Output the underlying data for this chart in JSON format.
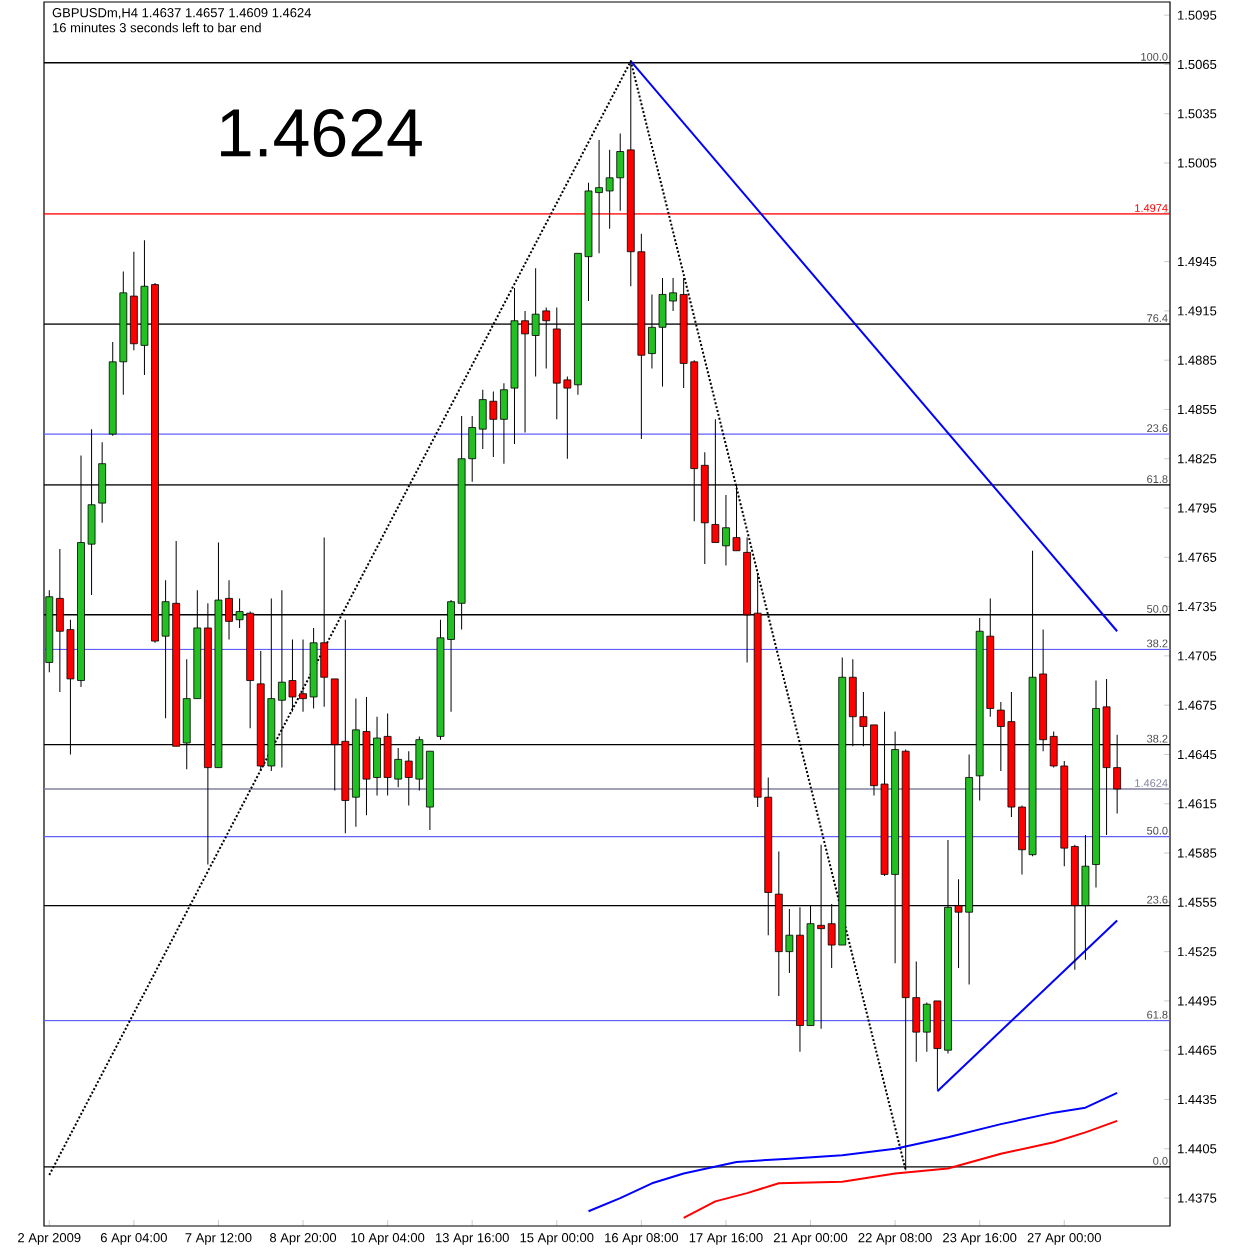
{
  "chart_data": {
    "type": "candlestick",
    "title": "GBPUSDm,H4 1.4637 1.4657 1.4609 1.4624",
    "subtitle": "16 minutes 3 seconds left to bar end",
    "annotations": [
      "1.4624",
      {
        "text": "100.0",
        "y": 1.5066
      },
      {
        "text": "76.4",
        "y": 1.4907
      },
      {
        "text": "23.6",
        "y": 1.484
      },
      {
        "text": "61.8",
        "y": 1.4809
      },
      {
        "text": "50.0",
        "y": 1.473
      },
      {
        "text": "38.2",
        "y": 1.4709
      },
      {
        "text": "38.2",
        "y": 1.4651
      },
      {
        "text": "50.0",
        "y": 1.4595
      },
      {
        "text": "23.6",
        "y": 1.4553
      },
      {
        "text": "61.8",
        "y": 1.4483
      },
      {
        "text": "0.0",
        "y": 1.4394
      }
    ],
    "categories": [
      "2 Apr 2009",
      null,
      null,
      null,
      null,
      null,
      null,
      null,
      "6 Apr 04:00",
      null,
      null,
      null,
      null,
      null,
      null,
      null,
      "7 Apr 12:00",
      null,
      null,
      null,
      null,
      null,
      null,
      null,
      "8 Apr 20:00",
      null,
      null,
      null,
      null,
      null,
      null,
      null,
      "10 Apr 04:00",
      null,
      null,
      null,
      null,
      null,
      null,
      null,
      "13 Apr 16:00",
      null,
      null,
      null,
      null,
      null,
      null,
      null,
      "15 Apr 00:00",
      null,
      null,
      null,
      null,
      null,
      null,
      null,
      "16 Apr 08:00",
      null,
      null,
      null,
      null,
      null,
      null,
      null,
      "17 Apr 16:00",
      null,
      null,
      null,
      null,
      null,
      null,
      null,
      "21 Apr 00:00",
      null,
      null,
      null,
      null,
      null,
      null,
      null,
      "22 Apr 08:00",
      null,
      null,
      null,
      null,
      null,
      null,
      null,
      "23 Apr 16:00",
      null,
      null,
      null,
      null,
      null,
      null,
      null,
      "27 Apr 00:00",
      null,
      null,
      null,
      null,
      null
    ],
    "ohlc": [
      [
        1.4701,
        1.4745,
        1.4695,
        1.4741
      ],
      [
        1.474,
        1.477,
        1.4683,
        1.472
      ],
      [
        1.4721,
        1.4727,
        1.4645,
        1.4691
      ],
      [
        1.469,
        1.4827,
        1.4686,
        1.4774
      ],
      [
        1.4773,
        1.4843,
        1.4742,
        1.4797
      ],
      [
        1.4798,
        1.4835,
        1.4786,
        1.4822
      ],
      [
        1.484,
        1.4896,
        1.4839,
        1.4884
      ],
      [
        1.4884,
        1.4939,
        1.4864,
        1.4926
      ],
      [
        1.4924,
        1.4951,
        1.4891,
        1.4895
      ],
      [
        1.4894,
        1.4958,
        1.4876,
        1.493
      ],
      [
        1.4931,
        1.4932,
        1.4713,
        1.4714
      ],
      [
        1.4717,
        1.4751,
        1.4667,
        1.4738
      ],
      [
        1.4737,
        1.4775,
        1.465,
        1.465
      ],
      [
        1.4652,
        1.4703,
        1.4636,
        1.4679
      ],
      [
        1.4679,
        1.4745,
        1.4679,
        1.4722
      ],
      [
        1.4722,
        1.4737,
        1.4578,
        1.4637
      ],
      [
        1.4637,
        1.4774,
        1.4637,
        1.4739
      ],
      [
        1.474,
        1.4751,
        1.4715,
        1.4726
      ],
      [
        1.4727,
        1.474,
        1.4722,
        1.4732
      ],
      [
        1.4731,
        1.4732,
        1.4661,
        1.469
      ],
      [
        1.4688,
        1.4708,
        1.4635,
        1.4638
      ],
      [
        1.4638,
        1.474,
        1.4635,
        1.4679
      ],
      [
        1.4678,
        1.4745,
        1.4637,
        1.4689
      ],
      [
        1.469,
        1.4715,
        1.4671,
        1.468
      ],
      [
        1.4682,
        1.4715,
        1.4671,
        1.4679
      ],
      [
        1.468,
        1.4722,
        1.4673,
        1.4713
      ],
      [
        1.4713,
        1.4777,
        1.4674,
        1.4692
      ],
      [
        1.4691,
        1.4691,
        1.4623,
        1.4651
      ],
      [
        1.4653,
        1.4727,
        1.4597,
        1.4617
      ],
      [
        1.4619,
        1.4679,
        1.4601,
        1.466
      ],
      [
        1.4659,
        1.468,
        1.4608,
        1.463
      ],
      [
        1.4631,
        1.4668,
        1.462,
        1.4655
      ],
      [
        1.4656,
        1.467,
        1.462,
        1.4631
      ],
      [
        1.463,
        1.4649,
        1.4625,
        1.4642
      ],
      [
        1.4641,
        1.4647,
        1.4614,
        1.4631
      ],
      [
        1.463,
        1.4656,
        1.4623,
        1.4654
      ],
      [
        1.4613,
        1.4647,
        1.4599,
        1.4647
      ],
      [
        1.4656,
        1.4727,
        1.4654,
        1.4716
      ],
      [
        1.4715,
        1.4739,
        1.4671,
        1.4738
      ],
      [
        1.4737,
        1.4851,
        1.4721,
        1.4825
      ],
      [
        1.4825,
        1.4851,
        1.4811,
        1.4844
      ],
      [
        1.4843,
        1.4867,
        1.4831,
        1.4861
      ],
      [
        1.486,
        1.4866,
        1.4826,
        1.4849
      ],
      [
        1.4849,
        1.4871,
        1.4822,
        1.4867
      ],
      [
        1.4868,
        1.4929,
        1.4834,
        1.4909
      ],
      [
        1.4909,
        1.4915,
        1.4841,
        1.4901
      ],
      [
        1.49,
        1.4941,
        1.4875,
        1.4913
      ],
      [
        1.4915,
        1.4917,
        1.488,
        1.4909
      ],
      [
        1.4904,
        1.4917,
        1.4849,
        1.4871
      ],
      [
        1.4873,
        1.4875,
        1.4825,
        1.4868
      ],
      [
        1.487,
        1.495,
        1.4864,
        1.495
      ],
      [
        1.4948,
        1.4993,
        1.4921,
        1.4988
      ],
      [
        1.4987,
        1.5019,
        1.495,
        1.499
      ],
      [
        1.4988,
        1.5013,
        1.4965,
        1.4996
      ],
      [
        1.4996,
        1.5023,
        1.4976,
        1.5012
      ],
      [
        1.5013,
        1.5067,
        1.493,
        1.4951
      ],
      [
        1.4951,
        1.4962,
        1.4837,
        1.4888
      ],
      [
        1.4889,
        1.4925,
        1.488,
        1.4905
      ],
      [
        1.4905,
        1.4935,
        1.4869,
        1.4925
      ],
      [
        1.4921,
        1.4935,
        1.4915,
        1.4926
      ],
      [
        1.4925,
        1.4935,
        1.4868,
        1.4883
      ],
      [
        1.4884,
        1.4885,
        1.4787,
        1.4819
      ],
      [
        1.4821,
        1.4829,
        1.4761,
        1.4786
      ],
      [
        1.4785,
        1.4849,
        1.4774,
        1.4774
      ],
      [
        1.4772,
        1.4803,
        1.476,
        1.4783
      ],
      [
        1.4777,
        1.4809,
        1.4769,
        1.4769
      ],
      [
        1.4768,
        1.4777,
        1.4701,
        1.473
      ],
      [
        1.4731,
        1.4755,
        1.4613,
        1.4619
      ],
      [
        1.4619,
        1.4631,
        1.4535,
        1.4561
      ],
      [
        1.456,
        1.4586,
        1.4498,
        1.4525
      ],
      [
        1.4525,
        1.4551,
        1.4512,
        1.4535
      ],
      [
        1.4535,
        1.4552,
        1.4464,
        1.448
      ],
      [
        1.448,
        1.4553,
        1.448,
        1.4542
      ],
      [
        1.4541,
        1.459,
        1.4478,
        1.4539
      ],
      [
        1.4542,
        1.4554,
        1.4515,
        1.4529
      ],
      [
        1.4529,
        1.4704,
        1.4529,
        1.4692
      ],
      [
        1.4692,
        1.4703,
        1.465,
        1.4668
      ],
      [
        1.4668,
        1.4683,
        1.465,
        1.4662
      ],
      [
        1.4663,
        1.4663,
        1.462,
        1.4626
      ],
      [
        1.4627,
        1.4671,
        1.4571,
        1.4572
      ],
      [
        1.4572,
        1.4659,
        1.4518,
        1.4648
      ],
      [
        1.4647,
        1.4648,
        1.4392,
        1.4497
      ],
      [
        1.4497,
        1.4519,
        1.4458,
        1.4476
      ],
      [
        1.4476,
        1.4494,
        1.4464,
        1.4493
      ],
      [
        1.4495,
        1.4495,
        1.4441,
        1.4466
      ],
      [
        1.4465,
        1.4593,
        1.4463,
        1.4552
      ],
      [
        1.4553,
        1.4569,
        1.4515,
        1.4549
      ],
      [
        1.4549,
        1.4645,
        1.4505,
        1.4631
      ],
      [
        1.4632,
        1.4728,
        1.4617,
        1.472
      ],
      [
        1.4717,
        1.474,
        1.4668,
        1.4673
      ],
      [
        1.4672,
        1.4677,
        1.4635,
        1.4662
      ],
      [
        1.4665,
        1.4683,
        1.4607,
        1.4613
      ],
      [
        1.4613,
        1.4614,
        1.4572,
        1.4587
      ],
      [
        1.4584,
        1.4769,
        1.4583,
        1.4692
      ],
      [
        1.4694,
        1.4721,
        1.4647,
        1.4654
      ],
      [
        1.4656,
        1.4659,
        1.4637,
        1.4638
      ],
      [
        1.4638,
        1.4641,
        1.4577,
        1.4588
      ],
      [
        1.4589,
        1.459,
        1.4514,
        1.4553
      ],
      [
        1.4553,
        1.4596,
        1.452,
        1.4577
      ],
      [
        1.4578,
        1.469,
        1.4564,
        1.4673
      ],
      [
        1.4674,
        1.4691,
        1.4596,
        1.4637
      ],
      [
        1.4637,
        1.4657,
        1.4609,
        1.4624
      ]
    ],
    "series": [
      {
        "type": "line",
        "color": "#000000",
        "line_style": "dotted",
        "values": [
          1.4389,
          null,
          null,
          null,
          null,
          null,
          null,
          null,
          null,
          null,
          null,
          null,
          null,
          null,
          null,
          null,
          null,
          null,
          null,
          null,
          null,
          null,
          null,
          null,
          null,
          null,
          null,
          null,
          null,
          null,
          null,
          null,
          null,
          null,
          null,
          null,
          null,
          null,
          null,
          null,
          null,
          null,
          null,
          null,
          null,
          null,
          null,
          null,
          null,
          null,
          null,
          null,
          null,
          null,
          null,
          1.5067,
          null,
          null,
          null,
          null,
          null,
          null,
          null,
          null,
          null,
          null,
          null,
          null,
          null,
          null,
          null,
          null,
          null,
          null,
          null,
          null,
          null,
          null,
          null,
          null,
          null,
          1.4392,
          null,
          null,
          null,
          null,
          null,
          null,
          null,
          null,
          null,
          null,
          null,
          null,
          null,
          null,
          null,
          null,
          null,
          null,
          null,
          null
        ]
      },
      {
        "type": "line",
        "color": "#0000ff",
        "line_style": "solid",
        "values": [
          null,
          null,
          null,
          null,
          null,
          null,
          null,
          null,
          null,
          null,
          null,
          null,
          null,
          null,
          null,
          null,
          null,
          null,
          null,
          null,
          null,
          null,
          null,
          null,
          null,
          null,
          null,
          null,
          null,
          null,
          null,
          null,
          null,
          null,
          null,
          null,
          null,
          null,
          null,
          null,
          null,
          null,
          null,
          null,
          null,
          null,
          null,
          null,
          null,
          null,
          null,
          null,
          null,
          null,
          null,
          1.5067,
          null,
          null,
          null,
          null,
          null,
          null,
          null,
          null,
          null,
          null,
          null,
          null,
          null,
          null,
          null,
          null,
          null,
          null,
          null,
          null,
          null,
          null,
          null,
          null,
          null,
          null,
          null,
          null,
          null,
          null,
          null,
          null,
          null,
          null,
          null,
          null,
          null,
          null,
          null,
          null,
          null,
          null,
          null,
          null,
          null,
          1.472
        ]
      },
      {
        "type": "line",
        "color": "#0000ff",
        "line_style": "solid",
        "values": [
          null,
          null,
          null,
          null,
          null,
          null,
          null,
          null,
          null,
          null,
          null,
          null,
          null,
          null,
          null,
          null,
          null,
          null,
          null,
          null,
          null,
          null,
          null,
          null,
          null,
          null,
          null,
          null,
          null,
          null,
          null,
          null,
          null,
          null,
          null,
          null,
          null,
          null,
          null,
          null,
          null,
          null,
          null,
          null,
          null,
          null,
          null,
          null,
          null,
          null,
          null,
          null,
          null,
          null,
          null,
          null,
          null,
          null,
          null,
          null,
          null,
          null,
          null,
          null,
          null,
          null,
          null,
          null,
          null,
          null,
          null,
          null,
          null,
          null,
          null,
          null,
          null,
          null,
          null,
          null,
          null,
          null,
          null,
          null,
          1.444,
          null,
          null,
          null,
          null,
          null,
          null,
          null,
          null,
          null,
          null,
          null,
          null,
          null,
          null,
          null,
          null,
          1.4544
        ]
      },
      {
        "type": "line",
        "color": "#0000ff",
        "line_style": "solid",
        "values": [
          null,
          null,
          null,
          null,
          null,
          null,
          null,
          null,
          null,
          null,
          null,
          null,
          null,
          null,
          null,
          null,
          null,
          null,
          null,
          null,
          null,
          null,
          null,
          null,
          null,
          null,
          null,
          null,
          null,
          null,
          null,
          null,
          null,
          null,
          null,
          null,
          null,
          null,
          null,
          null,
          null,
          null,
          null,
          null,
          null,
          null,
          null,
          null,
          null,
          null,
          null,
          1.4367,
          null,
          null,
          1.4375,
          null,
          null,
          1.4384,
          null,
          null,
          1.439,
          null,
          null,
          null,
          null,
          1.4397,
          null,
          null,
          null,
          null,
          1.4399,
          null,
          null,
          null,
          null,
          1.4401,
          null,
          null,
          null,
          null,
          1.4405,
          null,
          null,
          null,
          null,
          1.4412,
          null,
          null,
          null,
          null,
          1.442,
          null,
          null,
          null,
          null,
          1.4427,
          null,
          null,
          1.443,
          null,
          null,
          1.4439
        ]
      },
      {
        "type": "line",
        "color": "#ff0000",
        "line_style": "solid",
        "values": [
          null,
          null,
          null,
          null,
          null,
          null,
          null,
          null,
          null,
          null,
          null,
          null,
          null,
          null,
          null,
          null,
          null,
          null,
          null,
          null,
          null,
          null,
          null,
          null,
          null,
          null,
          null,
          null,
          null,
          null,
          null,
          null,
          null,
          null,
          null,
          null,
          null,
          null,
          null,
          null,
          null,
          null,
          null,
          null,
          null,
          null,
          null,
          null,
          null,
          null,
          null,
          null,
          null,
          null,
          null,
          null,
          null,
          null,
          null,
          null,
          1.4363,
          null,
          null,
          1.4373,
          null,
          null,
          1.4378,
          null,
          null,
          1.4384,
          null,
          null,
          null,
          null,
          null,
          1.4385,
          null,
          null,
          null,
          null,
          1.439,
          null,
          null,
          null,
          null,
          1.4393,
          null,
          null,
          null,
          null,
          1.4402,
          null,
          null,
          null,
          null,
          1.4409,
          null,
          null,
          1.4415,
          null,
          null,
          1.4422
        ]
      }
    ],
    "ref_lines": [
      {
        "axis": "y",
        "value": 1.5066,
        "color": "#000000"
      },
      {
        "axis": "y",
        "value": 1.4974,
        "label": "1.4974",
        "color": "#ff0000"
      },
      {
        "axis": "y",
        "value": 1.4907,
        "color": "#000000"
      },
      {
        "axis": "y",
        "value": 1.484,
        "color": "#6060ff"
      },
      {
        "axis": "y",
        "value": 1.4809,
        "color": "#000000"
      },
      {
        "axis": "y",
        "value": 1.473,
        "color": "#000000"
      },
      {
        "axis": "y",
        "value": 1.4709,
        "color": "#6060ff"
      },
      {
        "axis": "y",
        "value": 1.4651,
        "color": "#000000"
      },
      {
        "axis": "y",
        "value": 1.4624,
        "label": "1.4624",
        "color": "#8080a0"
      },
      {
        "axis": "y",
        "value": 1.4595,
        "color": "#6060ff"
      },
      {
        "axis": "y",
        "value": 1.4553,
        "color": "#000000"
      },
      {
        "axis": "y",
        "value": 1.4483,
        "color": "#6060ff"
      },
      {
        "axis": "y",
        "value": 1.4394,
        "color": "#000000"
      }
    ],
    "ylim": [
      1.4358,
      1.5103
    ],
    "yticks": [
      1.4375,
      1.4405,
      1.4435,
      1.4465,
      1.4495,
      1.4525,
      1.4555,
      1.4585,
      1.4615,
      1.4645,
      1.4675,
      1.4705,
      1.4735,
      1.4765,
      1.4795,
      1.4825,
      1.4855,
      1.4885,
      1.4915,
      1.4945,
      {
        "value": 1.4975,
        "label": null
      },
      1.5005,
      1.5035,
      1.5065,
      1.5095
    ]
  }
}
